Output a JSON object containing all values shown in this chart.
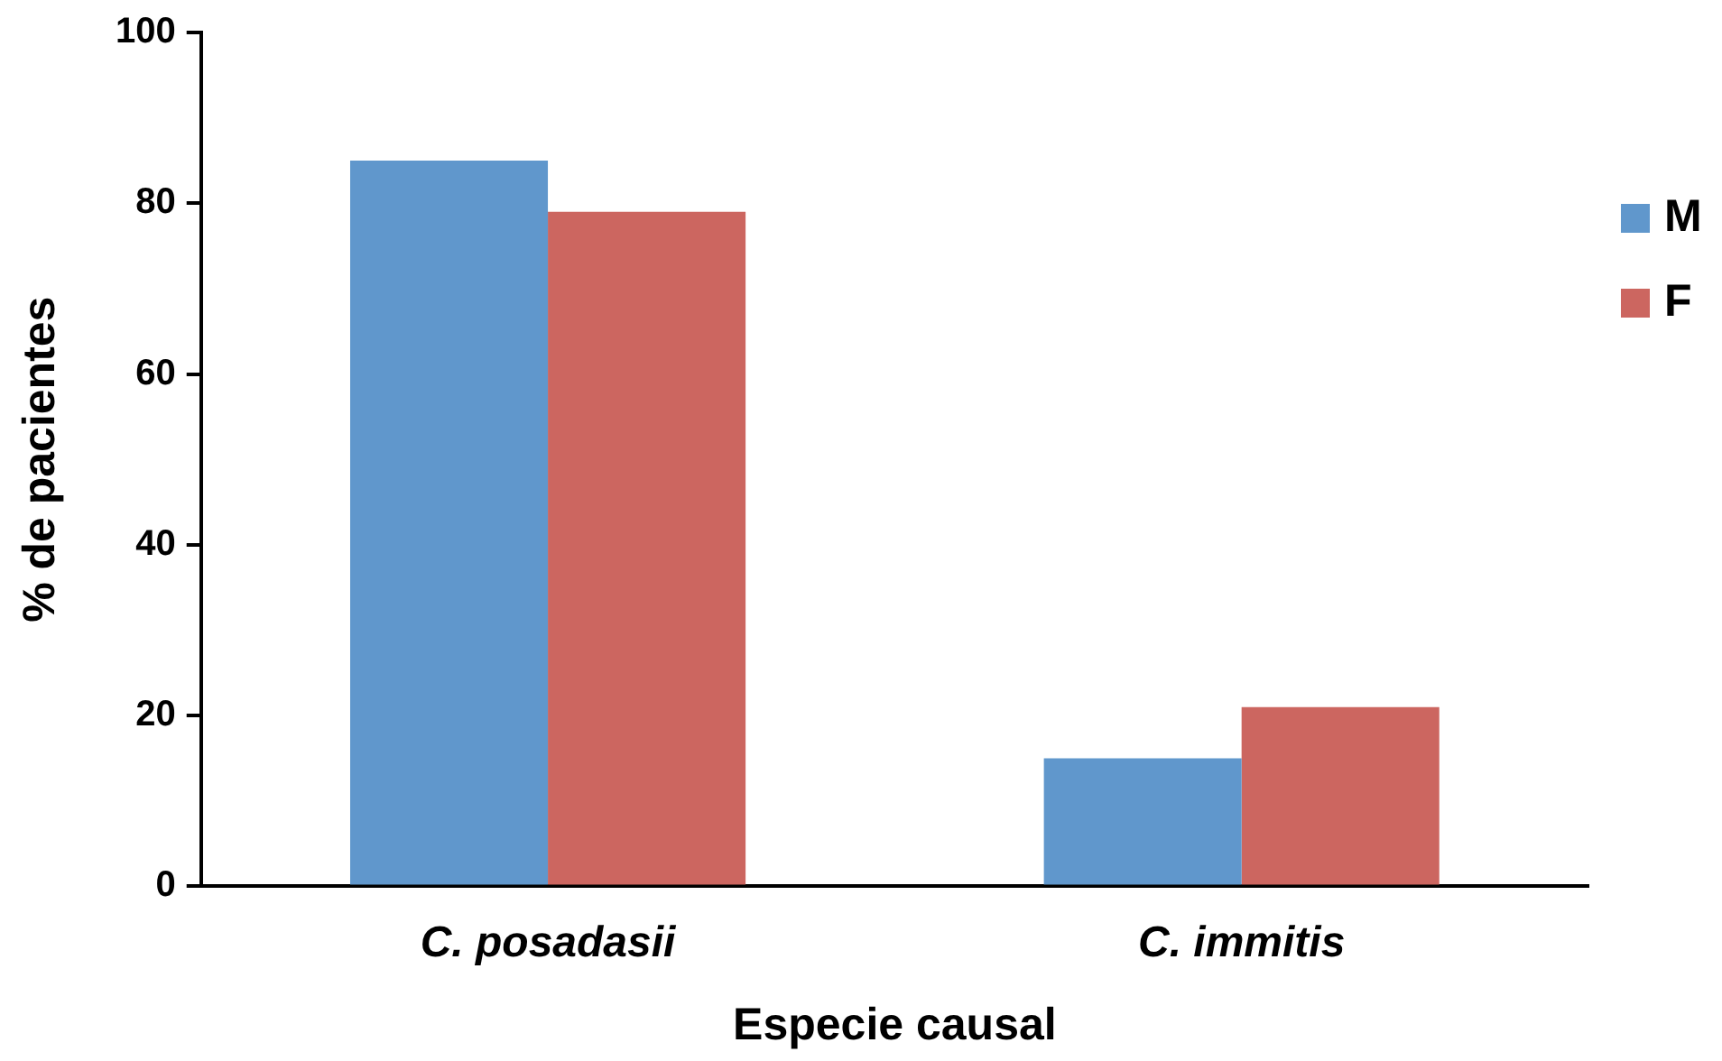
{
  "chart_data": {
    "type": "bar",
    "xlabel": "Especie causal",
    "ylabel": "% de pacientes",
    "categories": [
      "C. posadasii",
      "C. immitis"
    ],
    "series": [
      {
        "name": "M",
        "color": "#6097cc",
        "values": [
          85,
          15
        ]
      },
      {
        "name": "F",
        "color": "#cc6660",
        "values": [
          79,
          21
        ]
      }
    ],
    "ylim": [
      0,
      100
    ],
    "yticks": [
      0,
      20,
      40,
      60,
      80,
      100
    ],
    "grid": false,
    "legend": "right"
  }
}
